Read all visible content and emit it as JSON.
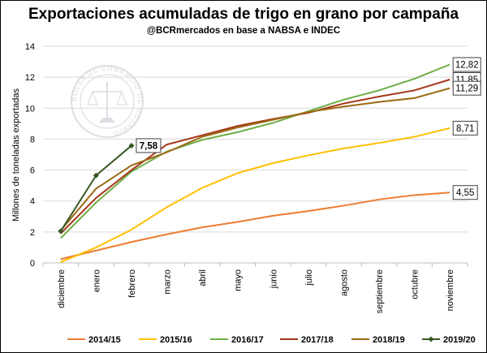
{
  "title": "Exportaciones acumuladas de trigo en grano por campaña",
  "subtitle": "@BCRmercados en base a NABSA e INDEC",
  "watermark": "BOLSA DE COMERCIO DE ROSARIO",
  "chart_data": {
    "type": "line",
    "title": "Exportaciones acumuladas de trigo en grano por campaña",
    "xlabel": "",
    "ylabel": "Millones de toneladas exportadas",
    "ylim": [
      0,
      14
    ],
    "yticks": [
      0,
      2,
      4,
      6,
      8,
      10,
      12,
      14
    ],
    "grid": "horizontal",
    "legend": "bottom",
    "categories": [
      "diciembre",
      "enero",
      "febrero",
      "marzo",
      "abril",
      "mayo",
      "junio",
      "julio",
      "agosto",
      "septiembre",
      "octubre",
      "noviembre"
    ],
    "series": [
      {
        "name": "2014/15",
        "color": "#ED7D31",
        "marker": false,
        "end_label": "4,55",
        "values": [
          0.25,
          0.8,
          1.35,
          1.85,
          2.3,
          2.65,
          3.05,
          3.35,
          3.7,
          4.1,
          4.38,
          4.55
        ]
      },
      {
        "name": "2015/16",
        "color": "#FFC000",
        "marker": false,
        "end_label": "8,71",
        "values": [
          0.05,
          1.0,
          2.15,
          3.6,
          4.85,
          5.8,
          6.45,
          6.95,
          7.4,
          7.75,
          8.15,
          8.71
        ]
      },
      {
        "name": "2016/17",
        "color": "#70AD47",
        "marker": false,
        "end_label": "12,82",
        "values": [
          1.6,
          3.9,
          5.9,
          7.2,
          7.95,
          8.45,
          9.05,
          9.8,
          10.55,
          11.15,
          11.9,
          12.82
        ]
      },
      {
        "name": "2017/18",
        "color": "#A5371B",
        "marker": false,
        "end_label": "11,85",
        "values": [
          1.9,
          4.2,
          6.0,
          7.65,
          8.25,
          8.85,
          9.3,
          9.7,
          10.3,
          10.75,
          11.15,
          11.85
        ]
      },
      {
        "name": "2018/19",
        "color": "#9C6A14",
        "marker": false,
        "end_label": "11,29",
        "values": [
          2.1,
          4.8,
          6.3,
          7.15,
          8.15,
          8.75,
          9.25,
          9.75,
          10.1,
          10.4,
          10.65,
          11.29
        ]
      },
      {
        "name": "2019/20",
        "color": "#385723",
        "marker": true,
        "end_label": "7,58",
        "values": [
          2.05,
          5.65,
          7.58,
          null,
          null,
          null,
          null,
          null,
          null,
          null,
          null,
          null
        ]
      }
    ]
  }
}
